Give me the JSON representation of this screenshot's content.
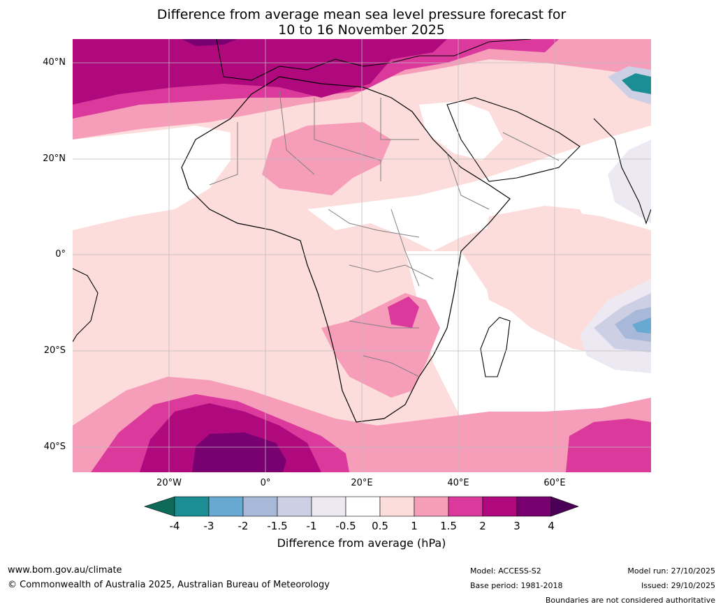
{
  "title": {
    "line1": "Difference from average mean sea level pressure forecast for",
    "line2": "10 to 16 November 2025"
  },
  "axes": {
    "lat_labels": [
      "40°N",
      "20°N",
      "0°",
      "20°S",
      "40°S"
    ],
    "lon_labels": [
      "20°W",
      "0°",
      "20°E",
      "40°E",
      "60°E"
    ]
  },
  "colorbar": {
    "ticks": [
      "-4",
      "-3",
      "-2",
      "-1.5",
      "-1",
      "-0.5",
      "0.5",
      "1",
      "1.5",
      "2",
      "3",
      "4"
    ],
    "label": "Difference from average (hPa)",
    "colors": {
      "below": "#0e6b5a",
      "bins": [
        "#1b8e94",
        "#68a9d1",
        "#a7b8d8",
        "#cdd0e5",
        "#ede9f2",
        "#ffffff",
        "#fddcdc",
        "#f69dba",
        "#db399b",
        "#b0097e",
        "#780071"
      ],
      "above": "#4b0058"
    }
  },
  "footer": {
    "website": "www.bom.gov.au/climate",
    "copyright": "© Commonwealth of Australia 2025, Australian Bureau of Meteorology",
    "model": "Model: ACCESS-S2",
    "base_period": "Base period: 1981-2018",
    "model_run": "Model run: 27/10/2025",
    "issued": "Issued: 29/10/2025",
    "boundaries": "Boundaries are not considered authoritative"
  }
}
